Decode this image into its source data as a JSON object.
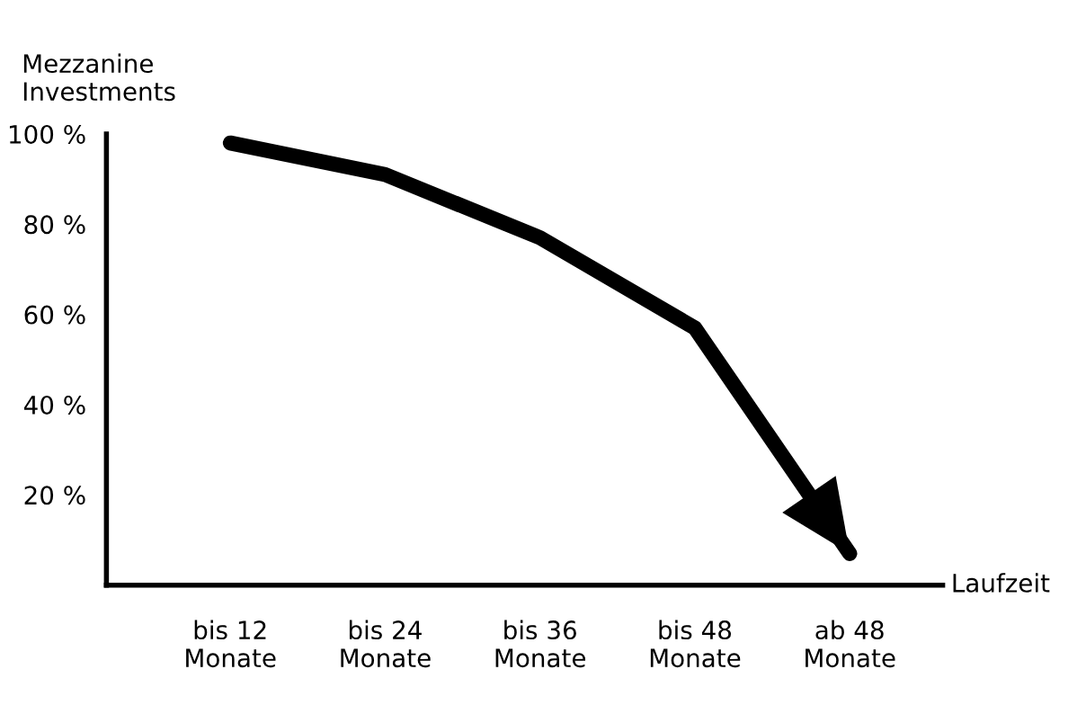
{
  "chart_data": {
    "type": "line",
    "ylabel": "Mezzanine\nInvestments",
    "xlabel": "Laufzeit",
    "categories": [
      "bis 12\nMonate",
      "bis 24\nMonate",
      "bis 36\nMonate",
      "bis 48\nMonate",
      "ab 48\nMonate"
    ],
    "series": [
      {
        "color": "#000000",
        "values": [
          98,
          91,
          77,
          57,
          7
        ]
      }
    ],
    "ylim": [
      0,
      100
    ],
    "yticks": [
      {
        "value": 20,
        "label": "20 %"
      },
      {
        "value": 40,
        "label": "40 %"
      },
      {
        "value": 60,
        "label": "60 %"
      },
      {
        "value": 80,
        "label": "80 %"
      },
      {
        "value": 100,
        "label": "100 %"
      }
    ],
    "grid": false,
    "legend": false,
    "marker": "none",
    "line_style": "solid"
  }
}
